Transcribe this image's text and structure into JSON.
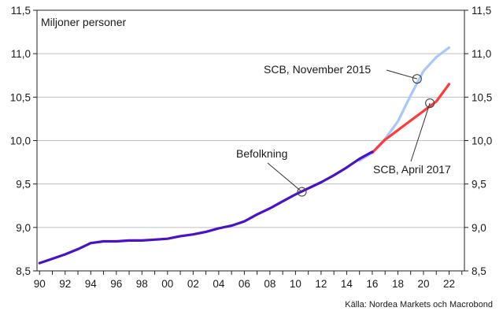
{
  "chart_data": {
    "type": "line",
    "ylabel": "Miljoner personer",
    "source": "Källa: Nordea Markets och Macrobond",
    "xlim": [
      1989.8,
      2023.2
    ],
    "ylim": [
      8.5,
      11.5
    ],
    "x_ticks": [
      1990,
      1992,
      1994,
      1996,
      1998,
      2000,
      2002,
      2004,
      2006,
      2008,
      2010,
      2012,
      2014,
      2016,
      2018,
      2020,
      2022
    ],
    "x_tick_labels": [
      "90",
      "92",
      "94",
      "96",
      "98",
      "00",
      "02",
      "04",
      "06",
      "08",
      "10",
      "12",
      "14",
      "16",
      "18",
      "20",
      "22"
    ],
    "y_ticks": [
      8.5,
      9.0,
      9.5,
      10.0,
      10.5,
      11.0,
      11.5
    ],
    "y_tick_labels": [
      "8,5",
      "9,0",
      "9,5",
      "10,0",
      "10,5",
      "11,0",
      "11,5"
    ],
    "grid": "horizontal",
    "series": [
      {
        "name": "SCB, November 2015",
        "color": "#a8c6ff",
        "x": [
          2015,
          2016,
          2017,
          2018,
          2019,
          2020,
          2021,
          2022
        ],
        "y": [
          9.77,
          9.86,
          10.02,
          10.22,
          10.52,
          10.8,
          10.96,
          11.07
        ]
      },
      {
        "name": "SCB, April 2017",
        "color": "#ff3a3a",
        "x": [
          2016,
          2017,
          2018,
          2019,
          2020,
          2021,
          2022
        ],
        "y": [
          9.86,
          10.01,
          10.12,
          10.23,
          10.34,
          10.45,
          10.65
        ]
      },
      {
        "name": "Befolkning",
        "color": "#4a12c6",
        "x": [
          1990,
          1991,
          1992,
          1993,
          1994,
          1995,
          1996,
          1997,
          1998,
          1999,
          2000,
          2001,
          2002,
          2003,
          2004,
          2005,
          2006,
          2007,
          2008,
          2009,
          2010,
          2011,
          2012,
          2013,
          2014,
          2015,
          2016
        ],
        "y": [
          8.59,
          8.64,
          8.69,
          8.75,
          8.82,
          8.84,
          8.84,
          8.85,
          8.85,
          8.86,
          8.87,
          8.9,
          8.92,
          8.95,
          8.99,
          9.02,
          9.07,
          9.15,
          9.22,
          9.3,
          9.38,
          9.45,
          9.52,
          9.6,
          9.69,
          9.79,
          9.87
        ]
      }
    ],
    "annotations": [
      {
        "text": "Befolkning",
        "x": 2010.5,
        "y": 9.41,
        "color": "#4a12c6"
      },
      {
        "text": "SCB, November 2015",
        "x": 2019.5,
        "y": 10.71,
        "color": "#a8c6ff"
      },
      {
        "text": "SCB, April 2017",
        "x": 2020.5,
        "y": 10.43,
        "color": "#ff3a3a"
      }
    ]
  }
}
